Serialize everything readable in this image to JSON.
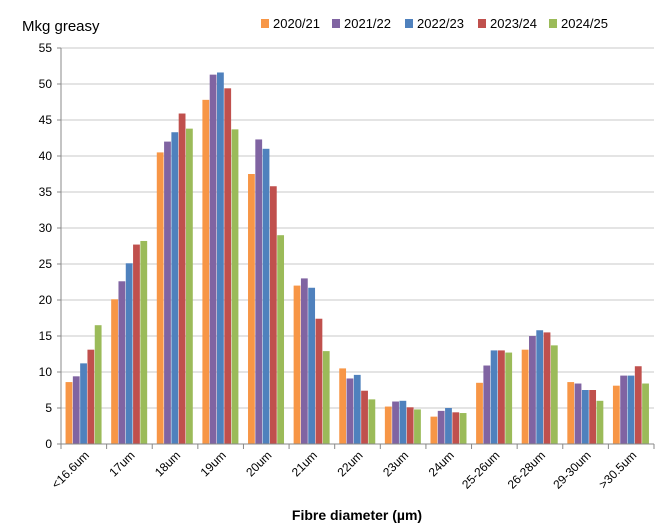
{
  "chart_data": {
    "type": "bar",
    "title": "Mkg greasy",
    "xlabel": "Fibre diameter (µm)",
    "ylabel": "Mkg greasy",
    "ylim": [
      0,
      55
    ],
    "yticks": [
      0,
      5,
      10,
      15,
      20,
      25,
      30,
      35,
      40,
      45,
      50,
      55
    ],
    "grid": true,
    "legend_position": "top-right",
    "categories": [
      "<16.6um",
      "17um",
      "18um",
      "19um",
      "20um",
      "21um",
      "22um",
      "23um",
      "24um",
      "25-26um",
      "26-28um",
      "29-30um",
      ">30.5um"
    ],
    "series": [
      {
        "name": "2020/21",
        "color": "#f79646",
        "values": [
          8.6,
          20.1,
          40.5,
          47.8,
          37.5,
          22.0,
          10.5,
          5.2,
          3.8,
          8.5,
          13.1,
          8.6,
          8.1
        ]
      },
      {
        "name": "2021/22",
        "color": "#8064a2",
        "values": [
          9.4,
          22.6,
          42.0,
          51.3,
          42.3,
          23.0,
          9.1,
          5.9,
          4.6,
          10.9,
          15.0,
          8.4,
          9.5
        ]
      },
      {
        "name": "2022/23",
        "color": "#4f81bd",
        "values": [
          11.2,
          25.1,
          43.3,
          51.6,
          41.0,
          21.7,
          9.6,
          6.0,
          5.0,
          13.0,
          15.8,
          7.5,
          9.5
        ]
      },
      {
        "name": "2023/24",
        "color": "#c0504d",
        "values": [
          13.1,
          27.7,
          45.9,
          49.4,
          35.8,
          17.4,
          7.4,
          5.1,
          4.4,
          13.0,
          15.5,
          7.5,
          10.8
        ]
      },
      {
        "name": "2024/25",
        "color": "#9bbb59",
        "values": [
          16.5,
          28.2,
          43.8,
          43.7,
          29.0,
          12.9,
          6.2,
          4.8,
          4.3,
          12.7,
          13.7,
          6.0,
          8.4
        ]
      }
    ]
  }
}
